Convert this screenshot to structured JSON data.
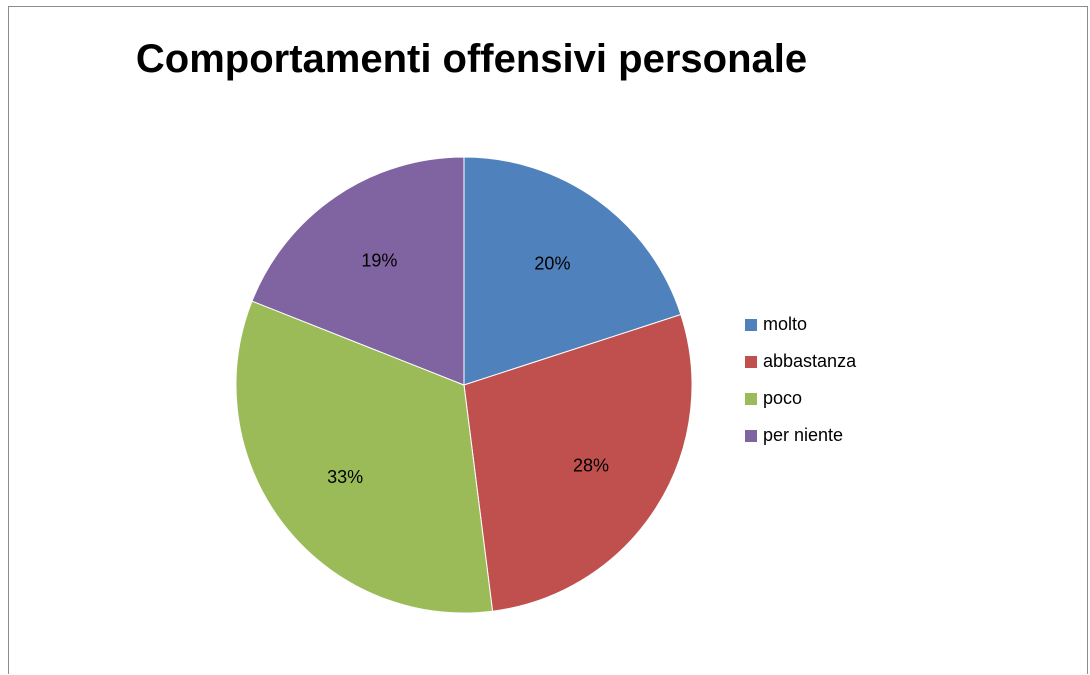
{
  "chart_data": {
    "type": "pie",
    "title": "Comportamenti offensivi personale",
    "categories": [
      "molto",
      "abbastanza",
      "poco",
      "per niente"
    ],
    "values": [
      20,
      28,
      33,
      19
    ],
    "labels": [
      "20%",
      "28%",
      "33%",
      "19%"
    ],
    "colors": [
      "#4F81BD",
      "#C0504D",
      "#9BBB59",
      "#8064A2"
    ],
    "legend_position": "right"
  },
  "legend": {
    "items": [
      {
        "label": "molto",
        "color": "#4F81BD"
      },
      {
        "label": "abbastanza",
        "color": "#C0504D"
      },
      {
        "label": "poco",
        "color": "#9BBB59"
      },
      {
        "label": "per niente",
        "color": "#8064A2"
      }
    ]
  }
}
